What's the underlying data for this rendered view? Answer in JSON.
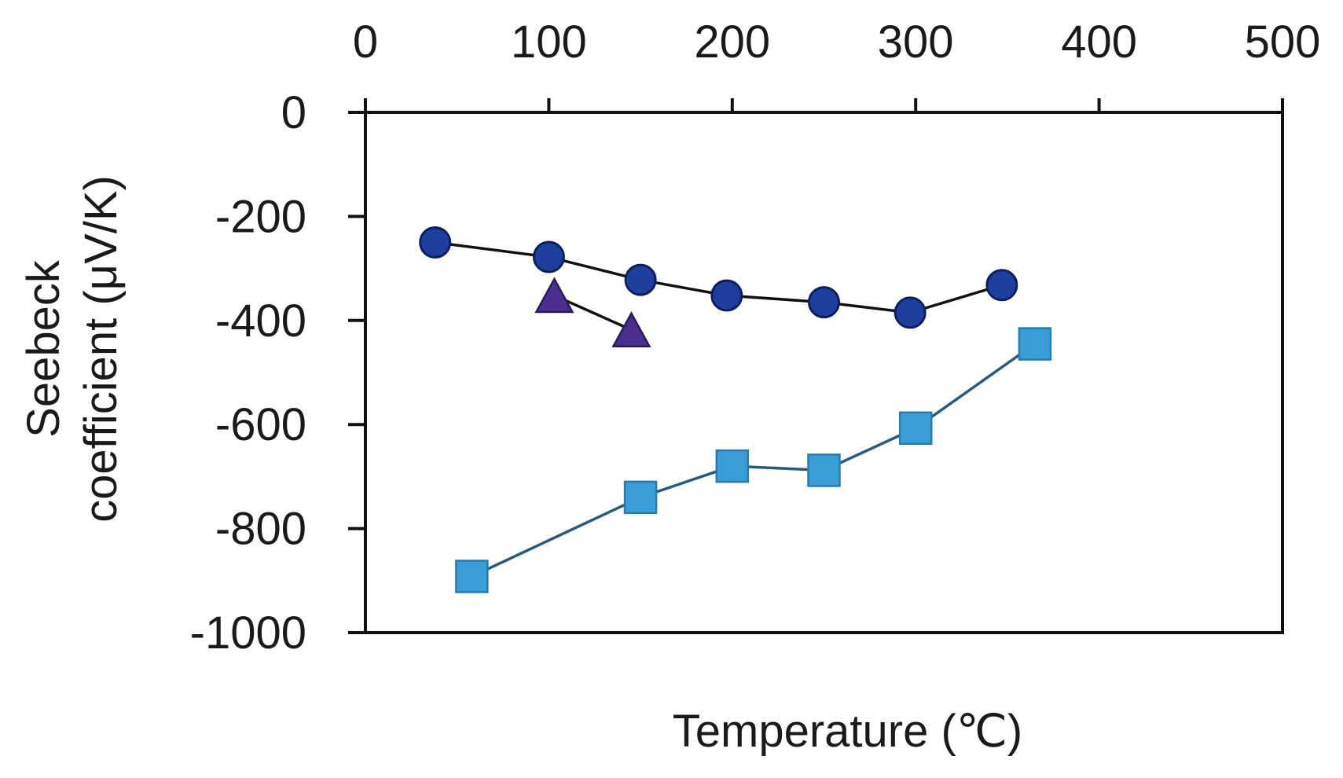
{
  "chart_data": {
    "type": "scatter",
    "title": "",
    "xlabel": "Temperature (℃)",
    "ylabel_lines": [
      "Seebeck",
      "coefficient (μV/K)"
    ],
    "xlim": [
      0,
      500
    ],
    "ylim": [
      -1000,
      0
    ],
    "x_ticks": [
      0,
      100,
      200,
      300,
      400,
      500
    ],
    "y_ticks": [
      0,
      -200,
      -400,
      -600,
      -800,
      -1000
    ],
    "x_tick_labels": [
      "0",
      "100",
      "200",
      "300",
      "400",
      "500"
    ],
    "y_tick_labels": [
      "0",
      "-200",
      "-400",
      "-600",
      "-800",
      "-1000"
    ],
    "x_axis_position": "top",
    "grid": false,
    "series": [
      {
        "name": "circles",
        "marker": "circle",
        "color": "#1f3f9f",
        "line_color": "#111111",
        "x": [
          38,
          100,
          150,
          197,
          250,
          297,
          347
        ],
        "y": [
          -250,
          -278,
          -322,
          -352,
          -365,
          -385,
          -332
        ]
      },
      {
        "name": "triangles",
        "marker": "triangle",
        "color": "#4b2f8f",
        "line_color": "#111111",
        "x": [
          103,
          145
        ],
        "y": [
          -352,
          -418
        ]
      },
      {
        "name": "squares",
        "marker": "square",
        "color": "#3a9ed6",
        "line_color": "#2a5a7a",
        "x": [
          58,
          150,
          200,
          250,
          300,
          365
        ],
        "y": [
          -892,
          -740,
          -680,
          -688,
          -607,
          -445
        ]
      }
    ]
  }
}
